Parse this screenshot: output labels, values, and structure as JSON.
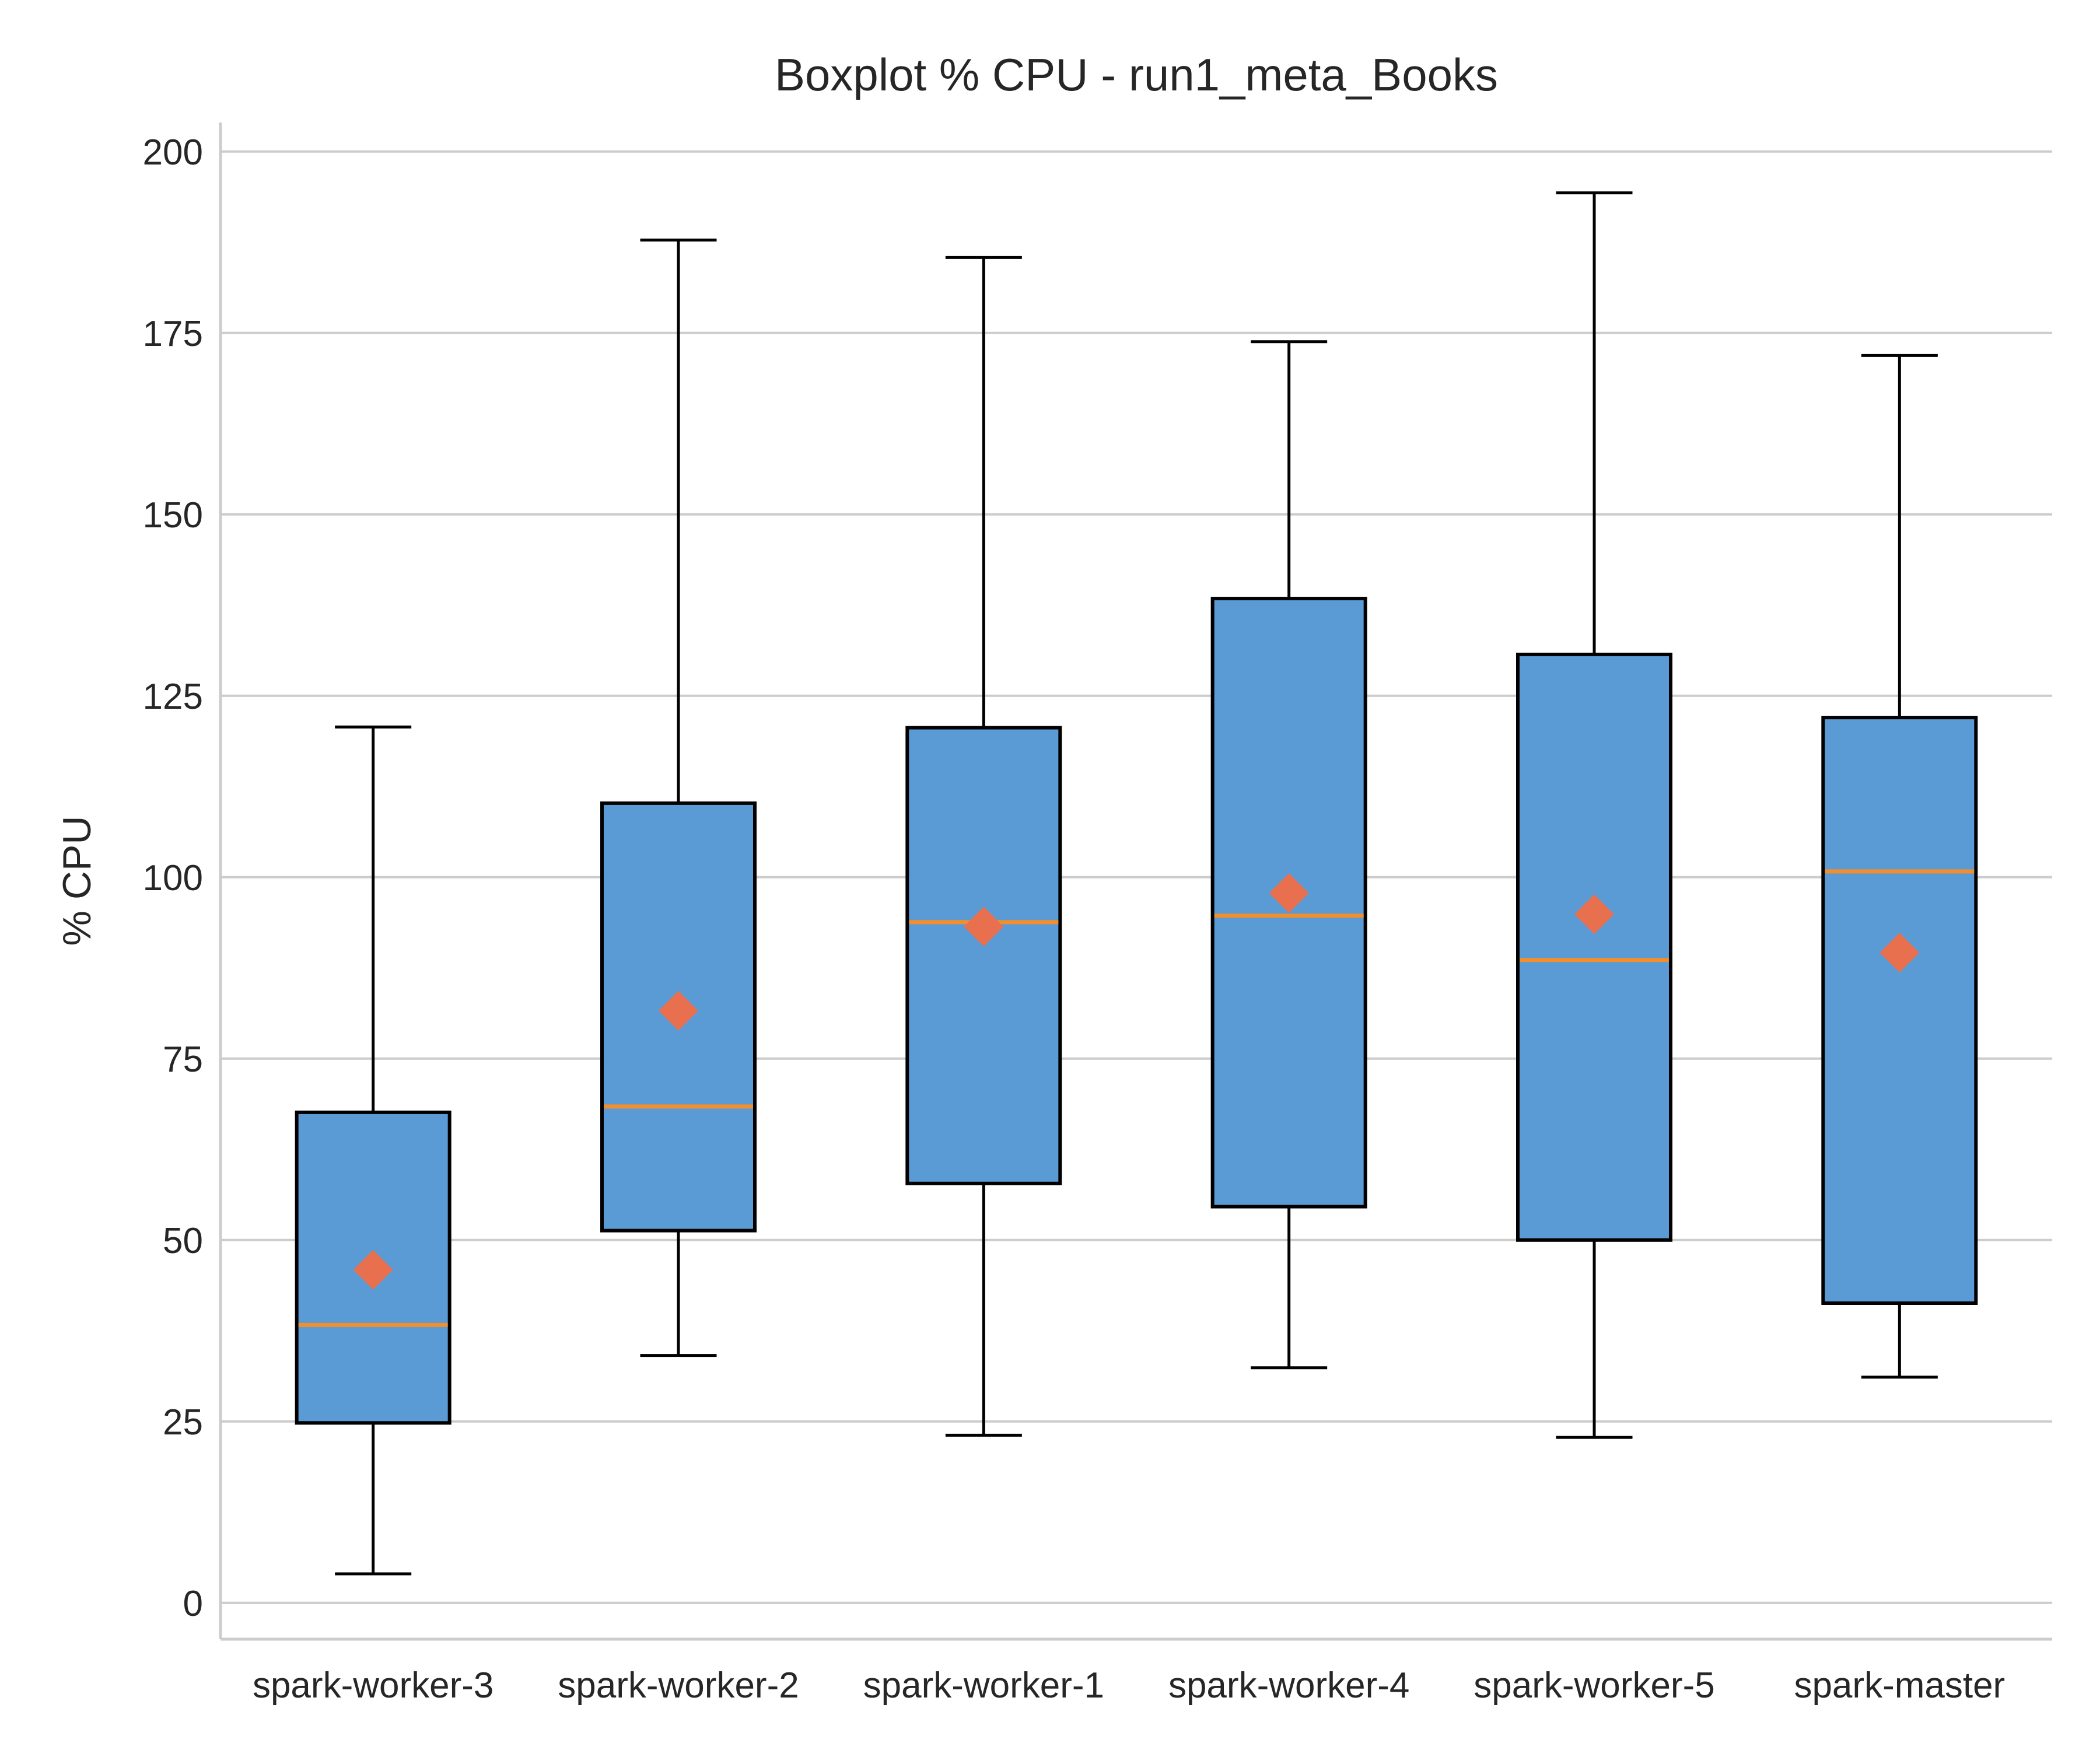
{
  "chart_data": {
    "type": "box",
    "title": "Boxplot % CPU - run1_meta_Books",
    "xlabel": "",
    "ylabel": "% CPU",
    "ylim": [
      -5,
      204
    ],
    "yticks": [
      "0",
      "25",
      "50",
      "75",
      "100",
      "125",
      "150",
      "175",
      "200"
    ],
    "grid": "horizontal",
    "legend": "none",
    "categories": [
      "spark-worker-3",
      "spark-worker-2",
      "spark-worker-1",
      "spark-worker-4",
      "spark-worker-5",
      "spark-master"
    ],
    "boxes": [
      {
        "whisker_low": 4,
        "q1": 24.8,
        "median": 38.3,
        "q3": 67.6,
        "whisker_high": 120.7,
        "mean": 45.9
      },
      {
        "whisker_low": 34.1,
        "q1": 51.3,
        "median": 68.4,
        "q3": 110.2,
        "whisker_high": 187.8,
        "mean": 81.6
      },
      {
        "whisker_low": 23.1,
        "q1": 57.8,
        "median": 93.8,
        "q3": 120.6,
        "whisker_high": 185.4,
        "mean": 93.2
      },
      {
        "whisker_low": 32.4,
        "q1": 54.6,
        "median": 94.7,
        "q3": 138.4,
        "whisker_high": 173.8,
        "mean": 97.8
      },
      {
        "whisker_low": 22.8,
        "q1": 50.0,
        "median": 88.6,
        "q3": 130.7,
        "whisker_high": 194.3,
        "mean": 94.9
      },
      {
        "whisker_low": 31.1,
        "q1": 41.3,
        "median": 100.8,
        "q3": 122.0,
        "whisker_high": 171.9,
        "mean": 89.6
      }
    ],
    "colors": {
      "box_fill": "#5b9bd5",
      "box_edge": "#000000",
      "median_line": "#f28e2b",
      "mean_marker": "#e8704e",
      "grid": "#cccccc",
      "spine": "#cccccc"
    }
  }
}
